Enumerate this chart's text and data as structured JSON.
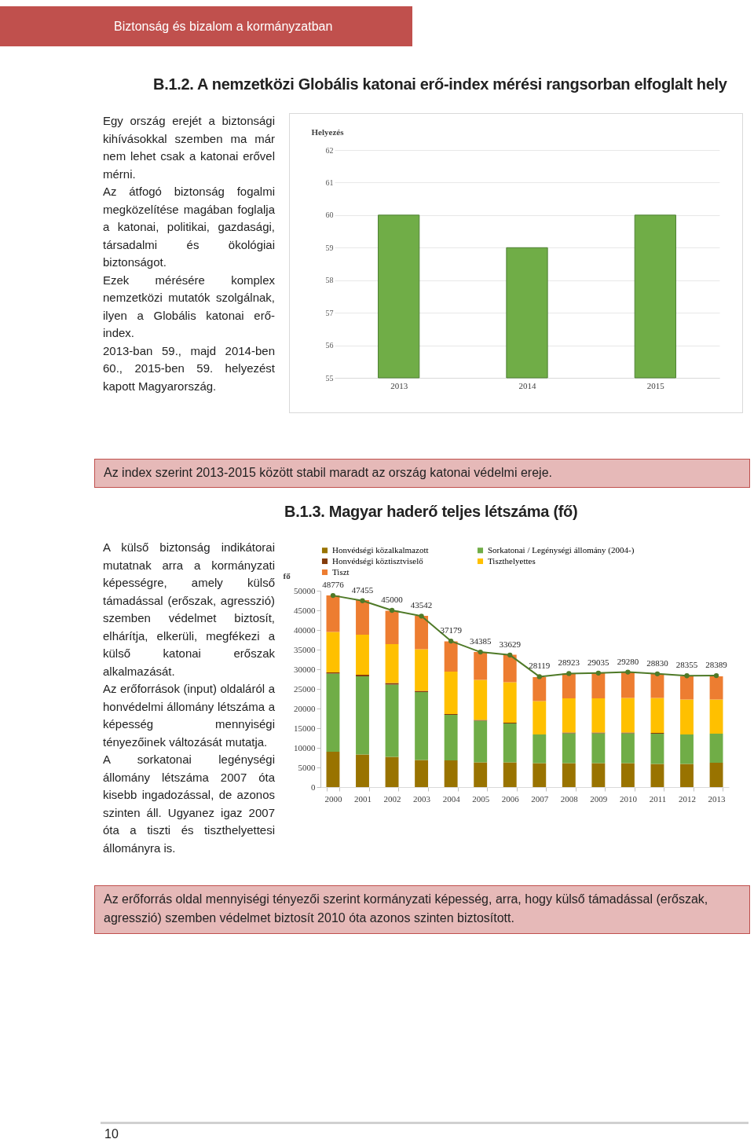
{
  "chart_data": [
    {
      "type": "bar",
      "title": "B.1.2. A nemzetközi Globális katonai erő-index mérési rangsorban elfoglalt hely",
      "ylabel": "Helyezés",
      "categories": [
        "2013",
        "2014",
        "2015"
      ],
      "values": [
        60,
        59,
        60
      ],
      "color": "#70ad47",
      "ylim": [
        55,
        62
      ],
      "yticks": [
        55,
        56,
        57,
        58,
        59,
        60,
        61,
        62
      ],
      "grid": "y",
      "legend": false,
      "annotations": [
        "Biztonság és bizalom a kormányzatban",
        "Egy ország erejét a biztonsági kihívásokkal szemben ma már nem lehet csak a katonai erővel mérni.",
        "Az átfogó biztonság fogalmi megközelítése magában foglalja a katonai, politikai, gazdasági, társadalmi és ökológiai biztonságot.",
        "Ezek mérésére komplex nemzetközi mutatók szolgálnak, ilyen a Globális katonai erő-index.",
        "2013-ban 59., majd 2014-ben 60., 2015-ben 59. helyezést kapott Magyarország.",
        "Az index szerint 2013-2015 között stabil maradt az ország katonai védelmi ereje."
      ]
    },
    {
      "type": "bar",
      "title": "B.1.3. Magyar haderő teljes létszáma (fő)",
      "ylabel": "fő",
      "stacked": true,
      "legend": "top",
      "grid": false,
      "marker": "circle",
      "categories": [
        "2000",
        "2001",
        "2002",
        "2003",
        "2004",
        "2005",
        "2006",
        "2007",
        "2008",
        "2009",
        "2010",
        "2011",
        "2012",
        "2013"
      ],
      "ylim": [
        0,
        50000
      ],
      "yticks": [
        0,
        5000,
        10000,
        15000,
        20000,
        25000,
        30000,
        35000,
        40000,
        45000,
        50000
      ],
      "series": [
        {
          "name": "Honvédségi közalkalmazott",
          "color": "#997300",
          "values": [
            9000,
            8300,
            7700,
            6900,
            6800,
            6300,
            6300,
            6100,
            6100,
            6100,
            6100,
            5900,
            5900,
            6200
          ]
        },
        {
          "name": "Sorkatonai / Legénységi állomány (2004-)",
          "color": "#70ad47",
          "values": [
            19900,
            19900,
            18400,
            17300,
            11600,
            10600,
            9900,
            7300,
            7600,
            7600,
            7600,
            7700,
            7500,
            7400
          ]
        },
        {
          "name": "Honvédségi köztisztviselő",
          "color": "#843c0c",
          "values": [
            300,
            400,
            400,
            300,
            200,
            200,
            200,
            null,
            200,
            200,
            200,
            200,
            null,
            null
          ]
        },
        {
          "name": "Tiszthelyettes",
          "color": "#ffc000",
          "values": [
            10300,
            10200,
            9900,
            10600,
            10800,
            10200,
            10300,
            8500,
            8700,
            8700,
            8800,
            8900,
            8900,
            8700
          ]
        },
        {
          "name": "Tiszt",
          "color": "#ed7d31",
          "values": [
            9300,
            8800,
            8500,
            8500,
            7700,
            7100,
            7000,
            6100,
            6300,
            6500,
            6600,
            6100,
            5900,
            5900
          ]
        },
        {
          "type": "line",
          "color": "#4f7a28",
          "values": [
            48776,
            47455,
            45000,
            43542,
            37179,
            34385,
            33629,
            28119,
            28923,
            29035,
            29280,
            28830,
            28355,
            28389
          ],
          "value_labels": [
            "48776",
            "47455",
            "45000",
            "43542",
            "37179",
            "34385",
            "33629",
            "28119",
            "28923",
            "29035",
            "29280",
            "28830",
            "28355",
            "28389"
          ]
        }
      ],
      "annotations": [
        "A külső biztonság indikátorai mutatnak arra a kormányzati képességre, amely külső támadással (erőszak, agresszió) szemben védelmet biztosít, elhárítja, elkerüli, megfékezi a külső katonai erőszak alkalmazását.",
        "Az erőforrások (input) oldaláról a honvédelmi állomány létszáma a képesség mennyiségi tényezőinek változását mutatja.",
        "A sorkatonai legénységi állomány létszáma 2007 óta kisebb ingadozással, de azonos szinten áll. Ugyanez igaz 2007 óta a tiszti és tiszthelyettesi állományra is.",
        "Az erőforrás oldal mennyiségi tényezői szerint kormányzati képesség, arra, hogy külső támadással (erőszak, agresszió) szemben védelmet biztosít 2010 óta azonos szinten biztosított.",
        "10"
      ]
    }
  ]
}
